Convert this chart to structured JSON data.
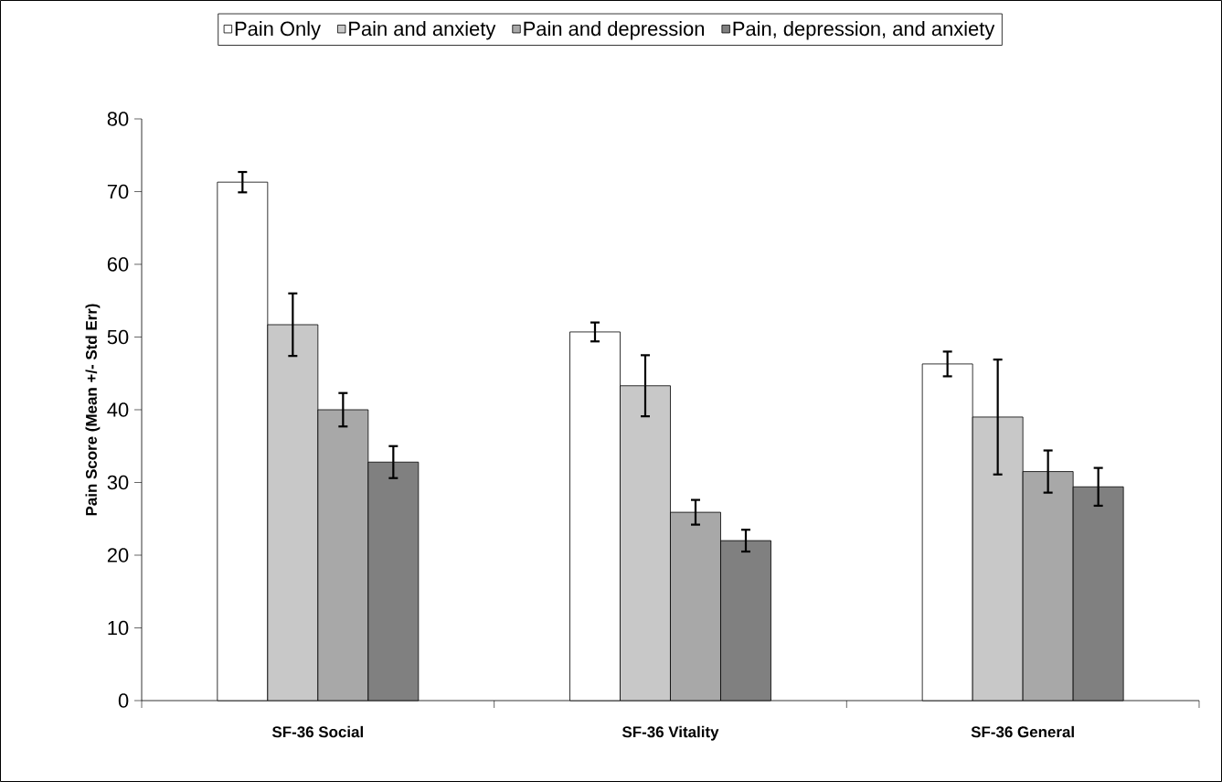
{
  "chart_data": {
    "type": "bar",
    "ylabel": "Pain Score (Mean +/- Std Err)",
    "categories": [
      "SF-36 Social",
      "SF-36 Vitality",
      "SF-36 General"
    ],
    "series": [
      {
        "name": "Pain Only",
        "color": "#ffffff",
        "values": [
          71.3,
          50.7,
          46.3
        ],
        "errors": [
          1.4,
          1.3,
          1.7
        ]
      },
      {
        "name": "Pain and anxiety",
        "color": "#c8c8c8",
        "values": [
          51.7,
          43.3,
          39.0
        ],
        "errors": [
          4.3,
          4.2,
          7.9
        ]
      },
      {
        "name": "Pain and depression",
        "color": "#a8a8a8",
        "values": [
          40.0,
          25.9,
          31.5
        ],
        "errors": [
          2.3,
          1.7,
          2.9
        ]
      },
      {
        "name": "Pain, depression, and anxiety",
        "color": "#808080",
        "values": [
          32.8,
          22.0,
          29.4
        ],
        "errors": [
          2.2,
          1.5,
          2.6
        ]
      }
    ],
    "ylim": [
      0,
      80
    ],
    "yticks": [
      0,
      10,
      20,
      30,
      40,
      50,
      60,
      70,
      80
    ],
    "legend": "top"
  }
}
